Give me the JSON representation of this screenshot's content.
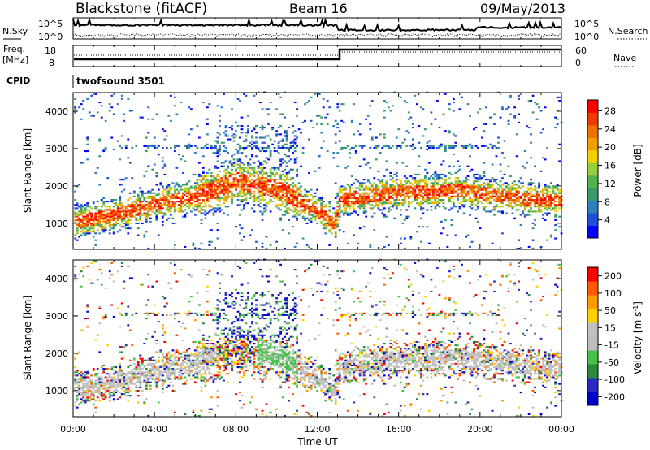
{
  "header": {
    "title": "Blackstone (fitACF)",
    "beam": "Beam 16",
    "date": "09/May/2013"
  },
  "noise_panel": {
    "left_label": "N.Sky",
    "right_label": "N.Search",
    "left_ticks": [
      "10^5",
      "10^0"
    ],
    "right_ticks": [
      "10^5",
      "10^0"
    ]
  },
  "freq_panel": {
    "left_label_1": "Freq.",
    "left_label_2": "[MHz]",
    "right_label": "Nave",
    "left_ticks": [
      "18",
      "8"
    ],
    "right_ticks": [
      "60",
      "0"
    ]
  },
  "cpid": {
    "label": "CPID",
    "value": "twofsound 3501"
  },
  "colors": {
    "power_scale": [
      "#0000ff",
      "#1f4fd6",
      "#2e7fbf",
      "#3a9a6a",
      "#53b24a",
      "#9acc3c",
      "#f0d000",
      "#f0a000",
      "#f07000",
      "#f03a00",
      "#ff0000"
    ],
    "velocity_scale": [
      "#ff0000",
      "#ff5a00",
      "#ff9a00",
      "#ffd000",
      "#c0c0c0",
      "#bdbdbd",
      "#49c04a",
      "#2a8a3a",
      "#2a2ac0",
      "#0000c8"
    ]
  },
  "chart_data": [
    {
      "type": "heatmap",
      "name": "power",
      "ylabel": "Slant Range [km]",
      "ylim": [
        300,
        4500
      ],
      "y_ticks": [
        1000,
        2000,
        3000,
        4000
      ],
      "x_ticks": [
        "00:00",
        "04:00",
        "08:00",
        "12:00",
        "16:00",
        "20:00",
        "00:00"
      ],
      "xlim_hours": [
        0,
        24
      ],
      "colorbar_label": "Power [dB]",
      "colorbar_ticks": [
        "4",
        "8",
        "12",
        "16",
        "20",
        "24",
        "28"
      ],
      "colorbar_range": [
        0,
        30
      ],
      "main_band_km": [
        [
          0,
          1000
        ],
        [
          2,
          1200
        ],
        [
          4,
          1500
        ],
        [
          6,
          1700
        ],
        [
          8,
          2100
        ],
        [
          10,
          1900
        ],
        [
          12,
          1300
        ],
        [
          12.9,
          950
        ],
        [
          13,
          1600
        ],
        [
          16,
          1800
        ],
        [
          19,
          1850
        ],
        [
          21,
          1700
        ],
        [
          23,
          1600
        ],
        [
          24,
          1600
        ]
      ]
    },
    {
      "type": "heatmap",
      "name": "velocity",
      "ylabel": "Slant Range [km]",
      "ylim": [
        300,
        4500
      ],
      "y_ticks": [
        1000,
        2000,
        3000,
        4000
      ],
      "x_ticks": [
        "00:00",
        "04:00",
        "08:00",
        "12:00",
        "16:00",
        "20:00",
        "00:00"
      ],
      "xlabel": "Time UT",
      "colorbar_label": "Velocity [m s",
      "colorbar_label_sup": "-1",
      "colorbar_label_end": "]",
      "colorbar_ticks": [
        "200",
        "100",
        "50",
        "15",
        "-15",
        "-50",
        "-100",
        "-200"
      ],
      "colorbar_range": [
        -250,
        250
      ]
    }
  ]
}
